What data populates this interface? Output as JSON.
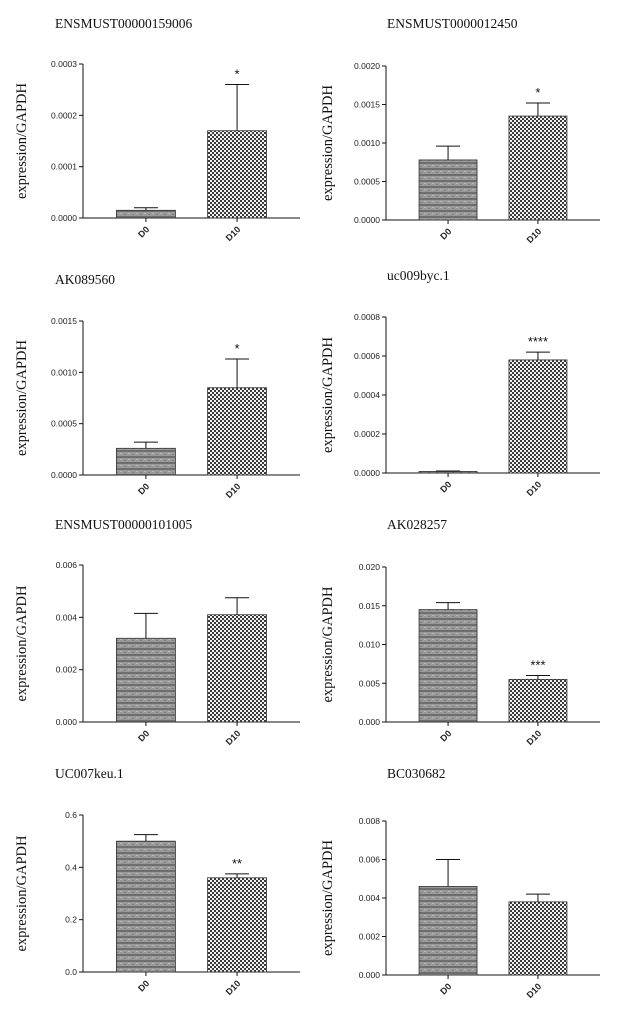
{
  "chart_data": [
    {
      "type": "bar",
      "title": "ENSMUST00000159006",
      "ylabel": "expression/GAPDH",
      "categories": [
        "D0",
        "D10"
      ],
      "values": [
        1.5e-05,
        0.00017
      ],
      "error": [
        5e-06,
        9e-05
      ],
      "ylim": [
        0,
        0.0003
      ],
      "yticks": [
        "0.0000",
        "0.0001",
        "0.0002",
        "0.0003"
      ],
      "significance": "*"
    },
    {
      "type": "bar",
      "title": "ENSMUST0000012450",
      "ylabel": "expression/GAPDH",
      "categories": [
        "D0",
        "D10"
      ],
      "values": [
        0.00078,
        0.00135
      ],
      "error": [
        0.00018,
        0.00017
      ],
      "ylim": [
        0,
        0.002
      ],
      "yticks": [
        "0.0000",
        "0.0005",
        "0.0010",
        "0.0015",
        "0.0020"
      ],
      "significance": "*"
    },
    {
      "type": "bar",
      "title": "AK089560",
      "ylabel": "expression/GAPDH",
      "categories": [
        "D0",
        "D10"
      ],
      "values": [
        0.00026,
        0.00085
      ],
      "error": [
        6e-05,
        0.00028
      ],
      "ylim": [
        0,
        0.0015
      ],
      "yticks": [
        "0.0000",
        "0.0005",
        "0.0010",
        "0.0015"
      ],
      "significance": "*"
    },
    {
      "type": "bar",
      "title": "uc009byc.1",
      "ylabel": "expression/GAPDH",
      "categories": [
        "D0",
        "D10"
      ],
      "values": [
        8e-06,
        0.00058
      ],
      "error": [
        2e-06,
        4e-05
      ],
      "ylim": [
        0,
        0.0008
      ],
      "yticks": [
        "0.0000",
        "0.0002",
        "0.0004",
        "0.0006",
        "0.0008"
      ],
      "significance": "****"
    },
    {
      "type": "bar",
      "title": "ENSMUST00000101005",
      "ylabel": "expression/GAPDH",
      "categories": [
        "D0",
        "D10"
      ],
      "values": [
        0.0032,
        0.0041
      ],
      "error": [
        0.00095,
        0.00065
      ],
      "ylim": [
        0,
        0.006
      ],
      "yticks": [
        "0.000",
        "0.002",
        "0.004",
        "0.006"
      ],
      "significance": ""
    },
    {
      "type": "bar",
      "title": "AK028257",
      "ylabel": "expression/GAPDH",
      "categories": [
        "D0",
        "D10"
      ],
      "values": [
        0.0145,
        0.0055
      ],
      "error": [
        0.0009,
        0.0005
      ],
      "ylim": [
        0,
        0.02
      ],
      "yticks": [
        "0.000",
        "0.005",
        "0.010",
        "0.015",
        "0.020"
      ],
      "significance": "***"
    },
    {
      "type": "bar",
      "title": "UC007keu.1",
      "ylabel": "expression/GAPDH",
      "categories": [
        "D0",
        "D10"
      ],
      "values": [
        0.5,
        0.36
      ],
      "error": [
        0.025,
        0.015
      ],
      "ylim": [
        0,
        0.6
      ],
      "yticks": [
        "0.0",
        "0.2",
        "0.4",
        "0.6"
      ],
      "significance": "**"
    },
    {
      "type": "bar",
      "title": "BC030682",
      "ylabel": "expression/GAPDH",
      "categories": [
        "D0",
        "D10"
      ],
      "values": [
        0.0046,
        0.0038
      ],
      "error": [
        0.0014,
        0.0004
      ],
      "ylim": [
        0,
        0.008
      ],
      "yticks": [
        "0.000",
        "0.002",
        "0.004",
        "0.006",
        "0.008"
      ],
      "significance": ""
    }
  ]
}
